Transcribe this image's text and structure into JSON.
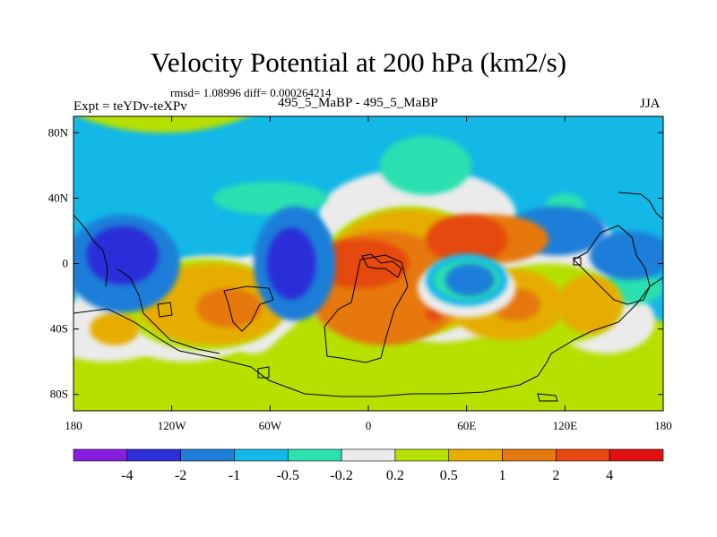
{
  "header": {
    "title": "Velocity Potential at 200 hPa (km2/s)",
    "rmsd_line": "rmsd= 1.08996 diff= 0.000264214",
    "experiment": "Expt = teYDv-teXPv",
    "models": "495_5_MaBP - 495_5_MaBP",
    "season": "JJA"
  },
  "chart_data": {
    "type": "heatmap",
    "title": "Velocity Potential at 200 hPa (km2/s)",
    "units": "km2/s",
    "xlabel": "",
    "ylabel": "",
    "xlim": [
      -180,
      180
    ],
    "ylim": [
      -90,
      90
    ],
    "x_ticks": [
      {
        "value": -180,
        "label": "180"
      },
      {
        "value": -120,
        "label": "120W"
      },
      {
        "value": -60,
        "label": "60W"
      },
      {
        "value": 0,
        "label": "0"
      },
      {
        "value": 60,
        "label": "60E"
      },
      {
        "value": 120,
        "label": "120E"
      },
      {
        "value": 180,
        "label": "180"
      }
    ],
    "y_ticks": [
      {
        "value": 80,
        "label": "80N"
      },
      {
        "value": 40,
        "label": "40N"
      },
      {
        "value": 0,
        "label": "0"
      },
      {
        "value": -40,
        "label": "40S"
      },
      {
        "value": -80,
        "label": "80S"
      }
    ],
    "contour_levels": [
      -4,
      -2,
      -1,
      -0.5,
      -0.2,
      0.2,
      0.5,
      1,
      2,
      4
    ],
    "level_labels": [
      "-4",
      "-2",
      "-1",
      "-0.5",
      "-0.2",
      "0.2",
      "0.5",
      "1",
      "2",
      "4"
    ],
    "colors": [
      "#8a1ee0",
      "#2c2fd8",
      "#1e7ed8",
      "#13b8e6",
      "#2ce0b0",
      "#ebebeb",
      "#b6e000",
      "#e6ad00",
      "#e67810",
      "#e64810",
      "#e01010"
    ],
    "background_class": "#13b8e6",
    "fields": [
      {
        "lon": -125,
        "lat": 135,
        "rx": 90,
        "ry": 55,
        "class": "#b6e000"
      },
      {
        "lon": 25,
        "lat": -60,
        "rx": 170,
        "ry": 45,
        "class": "#b6e000"
      },
      {
        "lon": -125,
        "lat": -75,
        "rx": 75,
        "ry": 40,
        "class": "#b6e000"
      },
      {
        "lon": 150,
        "lat": -65,
        "rx": 55,
        "ry": 35,
        "class": "#b6e000"
      },
      {
        "lon": 30,
        "lat": 30,
        "rx": 60,
        "ry": 28,
        "class": "#ebebeb"
      },
      {
        "lon": 45,
        "lat": -5,
        "rx": 58,
        "ry": 43,
        "class": "#ebebeb"
      },
      {
        "lon": -95,
        "lat": -25,
        "rx": 55,
        "ry": 30,
        "class": "#ebebeb"
      },
      {
        "lon": 125,
        "lat": 0,
        "rx": 30,
        "ry": 30,
        "class": "#ebebeb"
      },
      {
        "lon": -140,
        "lat": -20,
        "rx": 38,
        "ry": 22,
        "class": "#ebebeb"
      },
      {
        "lon": -160,
        "lat": -40,
        "rx": 40,
        "ry": 20,
        "class": "#ebebeb"
      },
      {
        "lon": -112,
        "lat": -40,
        "rx": 40,
        "ry": 20,
        "class": "#ebebeb"
      },
      {
        "lon": -70,
        "lat": -25,
        "rx": 20,
        "ry": 30,
        "class": "#ebebeb"
      },
      {
        "lon": 145,
        "lat": -35,
        "rx": 30,
        "ry": 20,
        "class": "#ebebeb"
      },
      {
        "lon": -20,
        "lat": -10,
        "rx": 25,
        "ry": 25,
        "class": "#ebebeb"
      },
      {
        "lon": 35,
        "lat": 60,
        "rx": 28,
        "ry": 18,
        "class": "#2ce0b0"
      },
      {
        "lon": -60,
        "lat": 40,
        "rx": 35,
        "ry": 10,
        "class": "#2ce0b0"
      },
      {
        "lon": 160,
        "lat": -15,
        "rx": 20,
        "ry": 10,
        "class": "#2ce0b0"
      },
      {
        "lon": 120,
        "lat": 35,
        "rx": 12,
        "ry": 8,
        "class": "#2ce0b0"
      },
      {
        "lon": 115,
        "lat": 20,
        "rx": 30,
        "ry": 15,
        "class": "#1e7ed8"
      },
      {
        "lon": 25,
        "lat": -5,
        "rx": 55,
        "ry": 40,
        "class": "#b6e000"
      },
      {
        "lon": -100,
        "lat": -25,
        "rx": 50,
        "ry": 28,
        "class": "#b6e000"
      },
      {
        "lon": 110,
        "lat": -25,
        "rx": 45,
        "ry": 25,
        "class": "#b6e000"
      },
      {
        "lon": -130,
        "lat": -22,
        "rx": 25,
        "ry": 18,
        "class": "#b6e000"
      },
      {
        "lon": 25,
        "lat": -5,
        "rx": 52,
        "ry": 38,
        "class": "#e6ad00"
      },
      {
        "lon": -95,
        "lat": -25,
        "rx": 45,
        "ry": 25,
        "class": "#e6ad00"
      },
      {
        "lon": 85,
        "lat": -25,
        "rx": 35,
        "ry": 22,
        "class": "#e6ad00"
      },
      {
        "lon": 135,
        "lat": -25,
        "rx": 20,
        "ry": 18,
        "class": "#e6ad00"
      },
      {
        "lon": -155,
        "lat": -40,
        "rx": 15,
        "ry": 10,
        "class": "#e6ad00"
      },
      {
        "lon": 10,
        "lat": -15,
        "rx": 48,
        "ry": 35,
        "class": "#e67810"
      },
      {
        "lon": 75,
        "lat": 15,
        "rx": 35,
        "ry": 15,
        "class": "#e67810"
      },
      {
        "lon": -85,
        "lat": -27,
        "rx": 20,
        "ry": 12,
        "class": "#e67810"
      },
      {
        "lon": 90,
        "lat": -25,
        "rx": 15,
        "ry": 10,
        "class": "#e67810"
      },
      {
        "lon": -5,
        "lat": 0,
        "rx": 30,
        "ry": 15,
        "class": "#e64810"
      },
      {
        "lon": 60,
        "lat": 15,
        "rx": 25,
        "ry": 15,
        "class": "#e64810"
      },
      {
        "lon": 40,
        "lat": -30,
        "rx": 5,
        "ry": 5,
        "class": "#e64810"
      },
      {
        "lon": 60,
        "lat": -15,
        "rx": 30,
        "ry": 18,
        "class": "#ebebeb"
      },
      {
        "lon": 60,
        "lat": -10,
        "rx": 25,
        "ry": 16,
        "class": "#13b8e6"
      },
      {
        "lon": 60,
        "lat": -10,
        "rx": 20,
        "ry": 12,
        "class": "#2ce0b0"
      },
      {
        "lon": 62,
        "lat": -10,
        "rx": 15,
        "ry": 10,
        "class": "#1e7ed8"
      },
      {
        "lon": -150,
        "lat": 0,
        "rx": 35,
        "ry": 30,
        "class": "#1e7ed8"
      },
      {
        "lon": -45,
        "lat": 0,
        "rx": 25,
        "ry": 35,
        "class": "#1e7ed8"
      },
      {
        "lon": -150,
        "lat": 5,
        "rx": 22,
        "ry": 18,
        "class": "#2c2fd8"
      },
      {
        "lon": -47,
        "lat": 0,
        "rx": 15,
        "ry": 22,
        "class": "#2c2fd8"
      },
      {
        "lon": 160,
        "lat": 5,
        "rx": 25,
        "ry": 15,
        "class": "#1e7ed8"
      }
    ]
  },
  "colorbar": {
    "labels": [
      "-4",
      "-2",
      "-1",
      "-0.5",
      "-0.2",
      "0.2",
      "0.5",
      "1",
      "2",
      "4"
    ]
  }
}
